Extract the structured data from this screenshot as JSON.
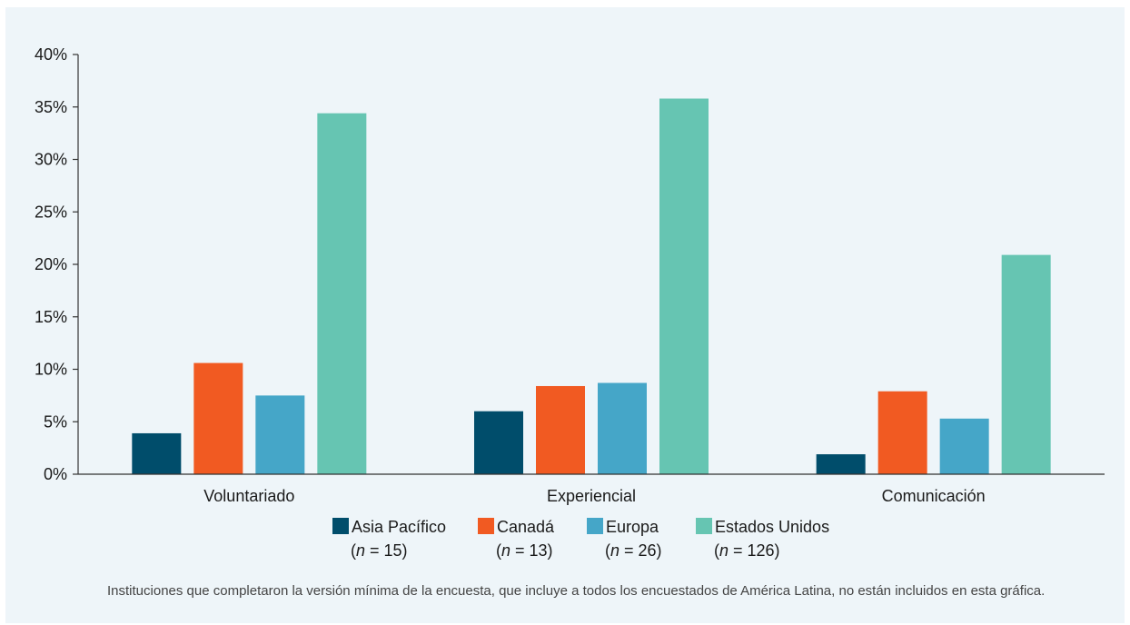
{
  "colors": {
    "Asia Pacífico": "#004d6b",
    "Canadá": "#f15a22",
    "Europa": "#45a6c8",
    "Estados Unidos": "#66c5b2",
    "axis": "#333333",
    "panel_background": "#eef5f9"
  },
  "footnote": "Instituciones que completaron la versión mínima de la encuesta, que incluye a todos los encuestados de América Latina, no están incluidos en esta gráfica.",
  "chart_data": {
    "type": "bar",
    "title": "",
    "xlabel": "",
    "ylabel": "",
    "ylim": [
      0,
      40
    ],
    "yticks": [
      "0%",
      "5%",
      "10%",
      "15%",
      "20%",
      "25%",
      "30%",
      "35%",
      "40%"
    ],
    "grid": false,
    "legend_position": "bottom",
    "categories": [
      "Voluntariado",
      "Experiencial",
      "Comunicación"
    ],
    "series": [
      {
        "name": "Asia Pacífico",
        "n_label": "(n = 15)",
        "values": [
          3.9,
          6.0,
          1.9
        ]
      },
      {
        "name": "Canadá",
        "n_label": "(n = 13)",
        "values": [
          10.6,
          8.4,
          7.9
        ]
      },
      {
        "name": "Europa",
        "n_label": "(n = 26)",
        "values": [
          7.5,
          8.7,
          5.3
        ]
      },
      {
        "name": "Estados Unidos",
        "n_label": "(n = 126)",
        "values": [
          34.4,
          35.8,
          20.9
        ]
      }
    ]
  }
}
